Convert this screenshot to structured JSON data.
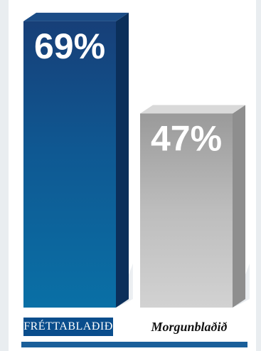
{
  "chart_data": {
    "type": "bar",
    "categories": [
      "FRÉTTABLAÐIÐ",
      "Morgunblaðið"
    ],
    "values": [
      69,
      47
    ],
    "value_labels": [
      "69%",
      "47%"
    ],
    "ylim": [
      0,
      100
    ],
    "grid": false,
    "colors": [
      "#0a4d8c",
      "#b4b4b4"
    ]
  }
}
